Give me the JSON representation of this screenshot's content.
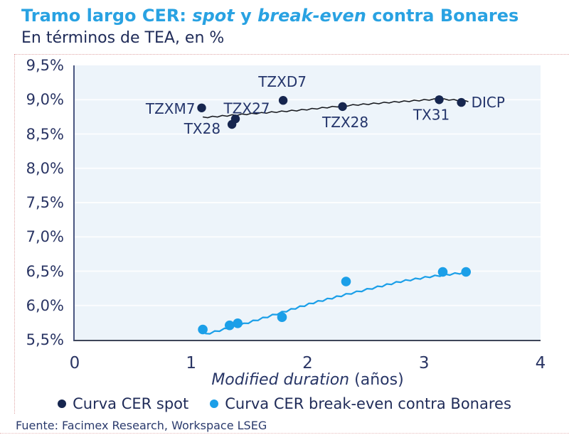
{
  "header": {
    "title_parts": {
      "p1": "Tramo largo CER: ",
      "p2": "spot",
      "p3": " y ",
      "p4": "break-even",
      "p5": " contra Bonares"
    },
    "subtitle": "En términos de TEA, en %"
  },
  "colors": {
    "accent_blue": "#29A2E2",
    "navy_text": "#1F2B58",
    "spot_point": "#16264F",
    "spot_line": "#15171C",
    "break_even": "#1B9FE8",
    "plot_background": "#EDF4FA"
  },
  "legend": {
    "items": [
      {
        "label": "Curva CER spot",
        "color": "#16264F"
      },
      {
        "label": "Curva CER break-even contra Bonares",
        "color": "#1B9FE8"
      }
    ]
  },
  "footer": {
    "source": "Fuente: Facimex Research, Workspace LSEG"
  },
  "chart_data": {
    "type": "scatter",
    "title": "Tramo largo CER: spot y break-even contra Bonares",
    "subtitle": "En términos de TEA, en %",
    "xlabel_italic": "Modified duration",
    "xlabel_unit": "(años)",
    "xlim": [
      0,
      4
    ],
    "ylim": [
      5.5,
      9.5
    ],
    "grid": "horizontal-faint",
    "legend_position": "bottom",
    "x_ticks": [
      {
        "v": 0,
        "label": "0"
      },
      {
        "v": 1,
        "label": "1"
      },
      {
        "v": 2,
        "label": "2"
      },
      {
        "v": 3,
        "label": "3"
      },
      {
        "v": 4,
        "label": "4"
      }
    ],
    "y_ticks": [
      {
        "v": 9.5,
        "label": "9,5%"
      },
      {
        "v": 9.0,
        "label": "9,0%"
      },
      {
        "v": 8.5,
        "label": "8,5%"
      },
      {
        "v": 8.0,
        "label": "8,0%"
      },
      {
        "v": 7.5,
        "label": "7,5%"
      },
      {
        "v": 7.0,
        "label": "7,0%"
      },
      {
        "v": 6.5,
        "label": "6,5%"
      },
      {
        "v": 6.0,
        "label": "6,0%"
      },
      {
        "v": 5.5,
        "label": "5,5%"
      }
    ],
    "series": [
      {
        "name": "Curva CER spot",
        "color": "#16264F",
        "line_color": "#15171C",
        "points": [
          {
            "label": "TZXM7",
            "x": 1.09,
            "y": 8.88
          },
          {
            "label": "TX28",
            "x": 1.35,
            "y": 8.64
          },
          {
            "label": "TZX27",
            "x": 1.38,
            "y": 8.72
          },
          {
            "label": "TZXD7",
            "x": 1.79,
            "y": 8.99
          },
          {
            "label": "TZX28",
            "x": 2.3,
            "y": 8.9
          },
          {
            "label": "TX31",
            "x": 3.13,
            "y": 9.0
          },
          {
            "label": "DICP",
            "x": 3.32,
            "y": 8.96
          }
        ],
        "trend": [
          [
            1.1,
            8.74
          ],
          [
            1.56,
            8.8
          ],
          [
            1.95,
            8.85
          ],
          [
            2.3,
            8.91
          ],
          [
            2.7,
            8.96
          ],
          [
            3.13,
            9.01
          ],
          [
            3.38,
            8.98
          ]
        ]
      },
      {
        "name": "Curva CER break-even contra Bonares",
        "color": "#1B9FE8",
        "line_color": "#1B9FE8",
        "points": [
          {
            "x": 1.1,
            "y": 5.65
          },
          {
            "x": 1.33,
            "y": 5.71
          },
          {
            "x": 1.4,
            "y": 5.74
          },
          {
            "x": 1.78,
            "y": 5.83
          },
          {
            "x": 2.33,
            "y": 6.35
          },
          {
            "x": 3.16,
            "y": 6.49
          },
          {
            "x": 3.36,
            "y": 6.49
          }
        ],
        "trend": [
          [
            1.12,
            5.58
          ],
          [
            1.45,
            5.73
          ],
          [
            1.78,
            5.9
          ],
          [
            2.05,
            6.04
          ],
          [
            2.33,
            6.16
          ],
          [
            2.6,
            6.27
          ],
          [
            2.8,
            6.35
          ],
          [
            3.05,
            6.42
          ],
          [
            3.35,
            6.48
          ]
        ]
      }
    ]
  }
}
